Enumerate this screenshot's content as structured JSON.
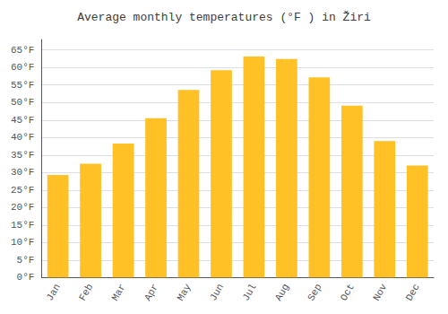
{
  "chart_data": {
    "type": "bar",
    "title": "Average monthly temperatures (°F ) in Žiri",
    "categories": [
      "Jan",
      "Feb",
      "Mar",
      "Apr",
      "May",
      "Jun",
      "Jul",
      "Aug",
      "Sep",
      "Oct",
      "Nov",
      "Dec"
    ],
    "values": [
      29.3,
      32.5,
      38.3,
      45.5,
      53.6,
      59.2,
      63.1,
      62.4,
      57.2,
      49.1,
      39.0,
      32.0
    ],
    "color": "#FFC125",
    "ylim": [
      0,
      68
    ],
    "yticks": [
      {
        "value": 0,
        "label": "0°F"
      },
      {
        "value": 5,
        "label": "5°F"
      },
      {
        "value": 10,
        "label": "10°F"
      },
      {
        "value": 15,
        "label": "15°F"
      },
      {
        "value": 20,
        "label": "20°F"
      },
      {
        "value": 25,
        "label": "25°F"
      },
      {
        "value": 30,
        "label": "30°F"
      },
      {
        "value": 35,
        "label": "35°F"
      },
      {
        "value": 40,
        "label": "40°F"
      },
      {
        "value": 45,
        "label": "45°F"
      },
      {
        "value": 50,
        "label": "50°F"
      },
      {
        "value": 55,
        "label": "55°F"
      },
      {
        "value": 60,
        "label": "60°F"
      },
      {
        "value": 65,
        "label": "65°F"
      }
    ],
    "grid": true
  }
}
